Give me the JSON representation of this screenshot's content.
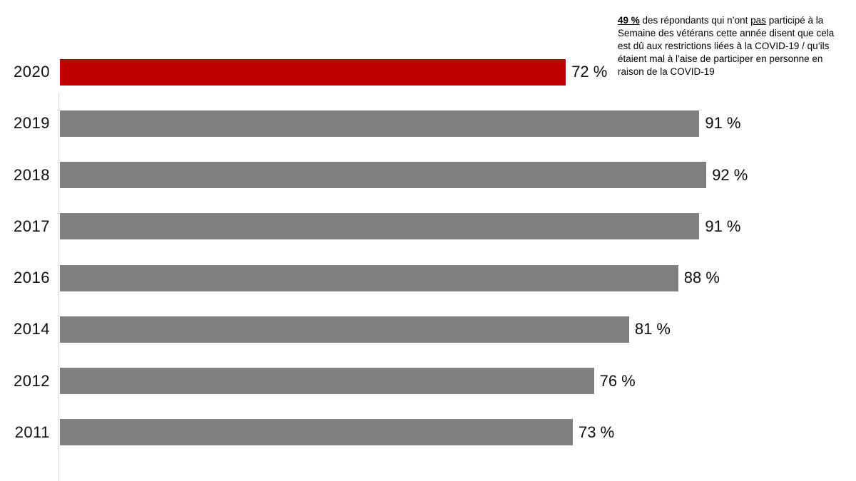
{
  "chart_data": {
    "type": "bar",
    "orientation": "horizontal",
    "title": "",
    "xlabel": "",
    "ylabel": "",
    "xlim": [
      0,
      100
    ],
    "grid": false,
    "legend": false,
    "categories": [
      "2020",
      "2019",
      "2018",
      "2017",
      "2016",
      "2014",
      "2012",
      "2011"
    ],
    "values": [
      72,
      91,
      92,
      91,
      88,
      81,
      76,
      73
    ],
    "value_labels": [
      "72 %",
      "91 %",
      "92 %",
      "91 %",
      "88 %",
      "81 %",
      "76 %",
      "73 %"
    ],
    "highlight_index": 0,
    "colors": {
      "bar_default": "#7f7f7f",
      "bar_highlight": "#c00000",
      "axis_line": "#d9d9d9",
      "label_text": "#0d0d0d"
    }
  },
  "annotation": {
    "segments": [
      {
        "text": "49 %",
        "bold": true,
        "underline": true
      },
      {
        "text": " des répondants qui n’ont ",
        "bold": false,
        "underline": false
      },
      {
        "text": "pas",
        "bold": false,
        "underline": true
      },
      {
        "text": " participé à la Semaine des vétérans cette année disent que cela est dû aux restrictions liées à la COVID-19 / qu’ils étaient mal à l’aise de participer en personne en raison de la COVID-19",
        "bold": false,
        "underline": false
      }
    ]
  }
}
